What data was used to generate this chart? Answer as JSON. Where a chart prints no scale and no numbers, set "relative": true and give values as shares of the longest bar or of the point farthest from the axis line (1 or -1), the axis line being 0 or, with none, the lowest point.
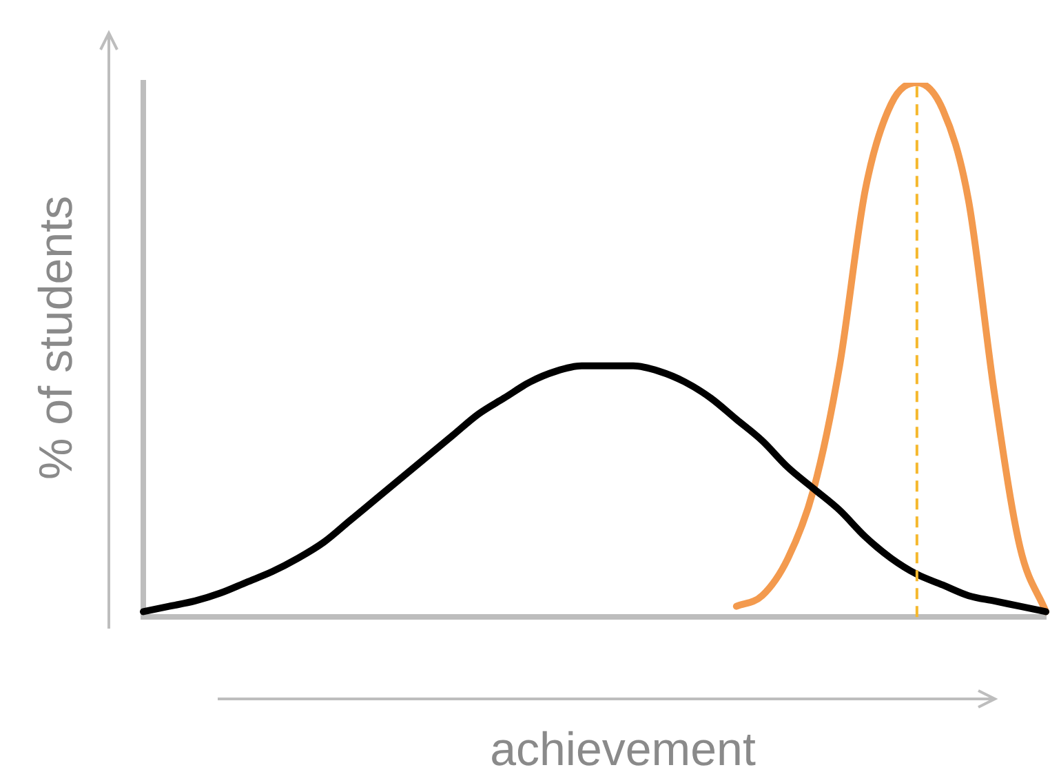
{
  "chart_data": {
    "type": "line",
    "relative": true,
    "xlabel": "achievement",
    "ylabel": "% of students",
    "categories": [
      null,
      null,
      null,
      null,
      null,
      null,
      null,
      null,
      null,
      null,
      null,
      null,
      null,
      null,
      null,
      null,
      null,
      null,
      null,
      null,
      null,
      null,
      null,
      null,
      null,
      null,
      null,
      null,
      null,
      null,
      null,
      null,
      null,
      null,
      null,
      null
    ],
    "series": [
      {
        "color": "#000000",
        "values": [
          0.01,
          0.02,
          0.03,
          0.045,
          0.065,
          0.085,
          0.11,
          0.14,
          0.18,
          0.22,
          0.26,
          0.3,
          0.34,
          0.38,
          0.41,
          0.44,
          0.46,
          0.47,
          0.47,
          0.47,
          0.46,
          0.44,
          0.41,
          0.37,
          0.33,
          0.28,
          0.24,
          0.2,
          0.15,
          0.11,
          0.08,
          0.06,
          0.04,
          0.03,
          0.02,
          0.01
        ]
      },
      {
        "color": "#f39a4e",
        "values": [
          null,
          null,
          null,
          null,
          null,
          null,
          null,
          null,
          null,
          null,
          null,
          null,
          null,
          null,
          null,
          null,
          null,
          null,
          null,
          null,
          null,
          null,
          null,
          0.02,
          0.04,
          0.11,
          0.24,
          0.47,
          0.8,
          0.96,
          1,
          0.95,
          0.78,
          0.42,
          0.13,
          0.01
        ]
      }
    ],
    "grid": false,
    "legend": false,
    "marker": "none",
    "line_style": "solid"
  }
}
